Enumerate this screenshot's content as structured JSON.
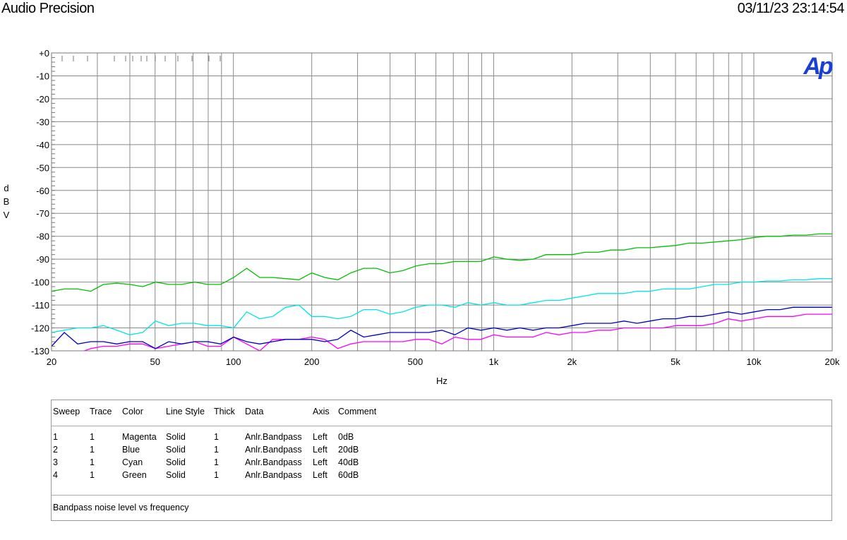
{
  "header": {
    "app_title": "Audio Precision",
    "timestamp": "03/11/23 23:14:54"
  },
  "chart_data": {
    "type": "line",
    "logo": "Ap",
    "ylabel": "dBV",
    "xlabel": "Hz",
    "xscale": "log",
    "xlim": [
      20,
      20000
    ],
    "ylim": [
      -130,
      0
    ],
    "grid": true,
    "x_ticks": [
      {
        "value": 20,
        "label": "20"
      },
      {
        "value": 50,
        "label": "50"
      },
      {
        "value": 100,
        "label": "100"
      },
      {
        "value": 200,
        "label": "200"
      },
      {
        "value": 500,
        "label": "500"
      },
      {
        "value": 1000,
        "label": "1k"
      },
      {
        "value": 2000,
        "label": "2k"
      },
      {
        "value": 5000,
        "label": "5k"
      },
      {
        "value": 10000,
        "label": "10k"
      },
      {
        "value": 20000,
        "label": "20k"
      }
    ],
    "y_ticks": [
      {
        "value": 0,
        "label": "+0"
      },
      {
        "value": -10,
        "label": "-10"
      },
      {
        "value": -20,
        "label": "-20"
      },
      {
        "value": -30,
        "label": "-30"
      },
      {
        "value": -40,
        "label": "-40"
      },
      {
        "value": -50,
        "label": "-50"
      },
      {
        "value": -60,
        "label": "-60"
      },
      {
        "value": -70,
        "label": "-70"
      },
      {
        "value": -80,
        "label": "-80"
      },
      {
        "value": -90,
        "label": "-90"
      },
      {
        "value": -100,
        "label": "-100"
      },
      {
        "value": -110,
        "label": "-110"
      },
      {
        "value": -120,
        "label": "-120"
      },
      {
        "value": -130,
        "label": "-130"
      }
    ],
    "x": [
      20,
      22.4,
      25.2,
      28.3,
      31.7,
      35.6,
      39.9,
      44.8,
      50.2,
      56.4,
      63.2,
      71,
      79.6,
      89.3,
      100.2,
      112.5,
      126.2,
      141.6,
      158.9,
      178.3,
      200,
      224.4,
      251.8,
      282.5,
      317,
      355.7,
      399.1,
      447.8,
      502.4,
      563.7,
      632.5,
      709.7,
      796.3,
      893.5,
      1002.5,
      1124.9,
      1262.2,
      1416.2,
      1589,
      1782.9,
      2000.5,
      2244.6,
      2518.5,
      2825.8,
      3170.7,
      3557.6,
      3991.7,
      4478.8,
      5025.3,
      5638.6,
      6326.6,
      7098.6,
      7964.8,
      8936.7,
      10027.3,
      11250.8,
      12623.7,
      14164.1,
      15892.5,
      17831.8,
      20000
    ],
    "series": [
      {
        "name": "Magenta",
        "color": "#ff00ff",
        "values": [
          -137,
          -133,
          -131,
          -129,
          -128,
          -128,
          -127,
          -127,
          -129,
          -128,
          -127,
          -126,
          -128,
          -128,
          -124,
          -127,
          -130,
          -125,
          -125,
          -125,
          -124,
          -125,
          -129,
          -127,
          -126,
          -126,
          -126,
          -126,
          -125,
          -125,
          -127,
          -124,
          -125,
          -125,
          -123,
          -124,
          -124,
          -124,
          -122,
          -123,
          -122,
          -122,
          -121,
          -121,
          -120,
          -120,
          -120,
          -120,
          -119,
          -119,
          -119,
          -118,
          -116,
          -117,
          -116,
          -115,
          -115,
          -115,
          -114,
          -114,
          -114
        ]
      },
      {
        "name": "Blue",
        "color": "#0000c0",
        "values": [
          -128,
          -122,
          -127,
          -126,
          -126,
          -127,
          -126,
          -126,
          -129,
          -126,
          -127,
          -126,
          -126,
          -127,
          -124,
          -126,
          -127,
          -126,
          -125,
          -125,
          -125,
          -126,
          -125,
          -121,
          -124,
          -123,
          -122,
          -122,
          -122,
          -122,
          -121,
          -123,
          -120,
          -121,
          -120,
          -121,
          -120,
          -121,
          -120,
          -120,
          -119,
          -118,
          -118,
          -118,
          -117,
          -118,
          -117,
          -116,
          -116,
          -115,
          -115,
          -114,
          -113,
          -114,
          -113,
          -112,
          -112,
          -111,
          -111,
          -111,
          -111
        ]
      },
      {
        "name": "Cyan",
        "color": "#00e5e5",
        "values": [
          -122,
          -121,
          -120,
          -120,
          -119,
          -121,
          -123,
          -122,
          -117,
          -119,
          -118,
          -118,
          -119,
          -119,
          -120,
          -113,
          -116,
          -115,
          -111,
          -110,
          -115,
          -115,
          -116,
          -115,
          -112,
          -112,
          -114,
          -113,
          -111,
          -110,
          -110,
          -111,
          -109,
          -110,
          -109,
          -110,
          -110,
          -109,
          -108,
          -108,
          -107,
          -106,
          -105,
          -105,
          -105,
          -104,
          -104,
          -103,
          -103,
          -103,
          -102,
          -101,
          -101,
          -100,
          -100,
          -99.5,
          -99.5,
          -99,
          -99,
          -98.5,
          -98.5
        ]
      },
      {
        "name": "Green",
        "color": "#00c000",
        "values": [
          -104,
          -103,
          -103,
          -104,
          -101,
          -100.5,
          -101,
          -102,
          -100,
          -101,
          -101,
          -100,
          -101,
          -101,
          -98,
          -94,
          -98,
          -98,
          -98.5,
          -99,
          -96,
          -98,
          -99,
          -96,
          -94,
          -94,
          -96,
          -95,
          -93,
          -92,
          -92,
          -91,
          -91,
          -91,
          -89,
          -90,
          -90.5,
          -90,
          -88,
          -88,
          -88,
          -87,
          -87,
          -86,
          -86,
          -85,
          -85,
          -84.5,
          -84,
          -83,
          -83,
          -82.5,
          -82,
          -81.5,
          -80.5,
          -80,
          -80,
          -79.5,
          -79.5,
          -79,
          -79
        ]
      }
    ]
  },
  "legend": {
    "headers": [
      "Sweep",
      "Trace",
      "Color",
      "Line Style",
      "Thick",
      "Data",
      "Axis",
      "Comment"
    ],
    "rows": [
      [
        "1",
        "1",
        "Magenta",
        "Solid",
        "1",
        "Anlr.Bandpass",
        "Left",
        "0dB"
      ],
      [
        "2",
        "1",
        "Blue",
        "Solid",
        "1",
        "Anlr.Bandpass",
        "Left",
        "20dB"
      ],
      [
        "3",
        "1",
        "Cyan",
        "Solid",
        "1",
        "Anlr.Bandpass",
        "Left",
        "40dB"
      ],
      [
        "4",
        "1",
        "Green",
        "Solid",
        "1",
        "Anlr.Bandpass",
        "Left",
        "60dB"
      ]
    ],
    "comment": "Bandpass noise level vs frequency"
  }
}
